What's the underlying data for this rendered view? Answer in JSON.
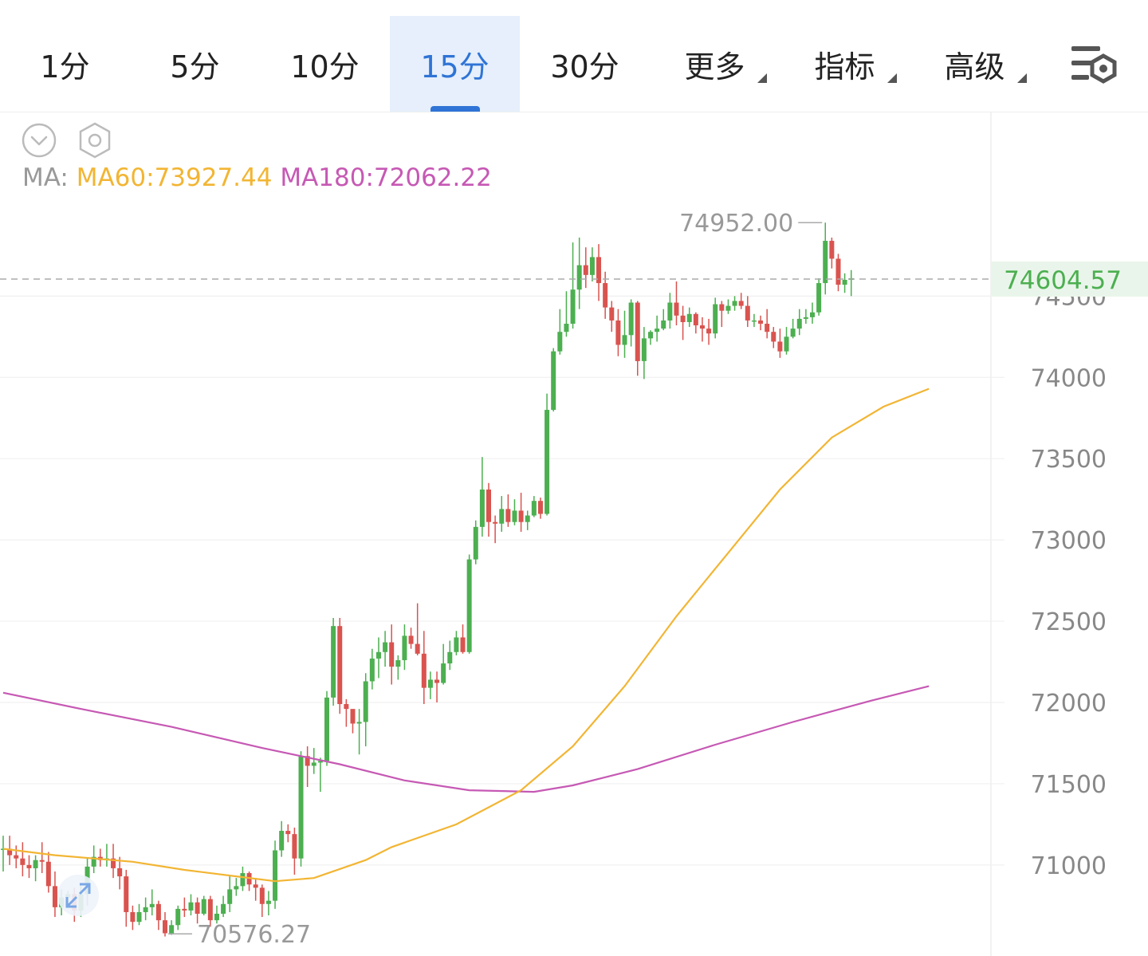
{
  "tabs": [
    {
      "label": "1分",
      "active": false
    },
    {
      "label": "5分",
      "active": false
    },
    {
      "label": "10分",
      "active": false
    },
    {
      "label": "15分",
      "active": true
    },
    {
      "label": "30分",
      "active": false
    },
    {
      "label": "更多",
      "active": false,
      "dropdown": true
    },
    {
      "label": "指标",
      "active": false,
      "dropdown": true
    },
    {
      "label": "高级",
      "active": false,
      "dropdown": true
    }
  ],
  "icons": {
    "collapse": "chevron-down-circle-icon",
    "settings": "hexagon-settings-icon",
    "chart_settings": "list-gear-icon",
    "expand": "expand-arrows-icon"
  },
  "legend": {
    "label": "MA:",
    "ma60": "MA60:73927.44",
    "ma180": "MA180:72062.22"
  },
  "colors": {
    "up": "#4caf50",
    "down": "#d9534f",
    "ma60": "#f2b533",
    "ma180": "#c659b4",
    "active_tab": "#2f74d6",
    "last_price": "#4caf50"
  },
  "chart_data": {
    "type": "candlestick",
    "interval": "15分",
    "y_ticks": [
      71000,
      71500,
      72000,
      72500,
      73000,
      73500,
      74000,
      74500
    ],
    "y_tick_labels": [
      "71000",
      "71500",
      "72000",
      "72500",
      "73000",
      "73500",
      "74000",
      "74500"
    ],
    "ylim": [
      70440,
      75630
    ],
    "last_price": 74604.57,
    "last_price_label": "74604.57",
    "high_label": "74952.00",
    "high_value": 74952.0,
    "low_label": "70576.27",
    "low_value": 70576.27,
    "candles": [
      [
        71100,
        71100,
        70960,
        71180
      ],
      [
        71100,
        71060,
        71000,
        71180
      ],
      [
        71060,
        71040,
        70980,
        71120
      ],
      [
        71040,
        71000,
        70930,
        71140
      ],
      [
        71000,
        70980,
        70920,
        71060
      ],
      [
        70980,
        71030,
        70900,
        71060
      ],
      [
        71030,
        71020,
        70950,
        71140
      ],
      [
        71020,
        70870,
        70830,
        71080
      ],
      [
        70870,
        70740,
        70680,
        70960
      ],
      [
        70740,
        70800,
        70690,
        70850
      ],
      [
        70800,
        70820,
        70750,
        70840
      ],
      [
        70820,
        70720,
        70650,
        70860
      ],
      [
        70720,
        70820,
        70680,
        70880
      ],
      [
        70820,
        70990,
        70750,
        71040
      ],
      [
        70990,
        71050,
        70950,
        71120
      ],
      [
        71050,
        71030,
        70990,
        71100
      ],
      [
        71030,
        71040,
        70990,
        71130
      ],
      [
        71040,
        70980,
        70920,
        71130
      ],
      [
        70980,
        70930,
        70850,
        71050
      ],
      [
        70930,
        70710,
        70620,
        70970
      ],
      [
        70710,
        70650,
        70600,
        70750
      ],
      [
        70650,
        70710,
        70630,
        70760
      ],
      [
        70710,
        70740,
        70660,
        70800
      ],
      [
        70740,
        70760,
        70690,
        70850
      ],
      [
        70760,
        70660,
        70600,
        70780
      ],
      [
        70660,
        70580,
        70560,
        70710
      ],
      [
        70580,
        70630,
        70570,
        70660
      ],
      [
        70630,
        70730,
        70600,
        70750
      ],
      [
        70730,
        70720,
        70680,
        70800
      ],
      [
        70720,
        70770,
        70690,
        70820
      ],
      [
        70770,
        70700,
        70640,
        70800
      ],
      [
        70700,
        70790,
        70690,
        70810
      ],
      [
        70790,
        70660,
        70620,
        70810
      ],
      [
        70660,
        70700,
        70640,
        70750
      ],
      [
        70700,
        70760,
        70680,
        70810
      ],
      [
        70760,
        70850,
        70710,
        70930
      ],
      [
        70850,
        70870,
        70810,
        70920
      ],
      [
        70870,
        70950,
        70840,
        70990
      ],
      [
        70950,
        70880,
        70840,
        70960
      ],
      [
        70880,
        70860,
        70780,
        70920
      ],
      [
        70860,
        70760,
        70680,
        70880
      ],
      [
        70760,
        70780,
        70690,
        70840
      ],
      [
        70780,
        71090,
        70730,
        71150
      ],
      [
        71090,
        71210,
        71050,
        71270
      ],
      [
        71210,
        71190,
        71140,
        71250
      ],
      [
        71190,
        71040,
        70940,
        71230
      ],
      [
        71040,
        71670,
        70990,
        71700
      ],
      [
        71670,
        71610,
        71480,
        71730
      ],
      [
        71610,
        71630,
        71560,
        71720
      ],
      [
        71630,
        71640,
        71450,
        71660
      ],
      [
        71640,
        72030,
        71610,
        72070
      ],
      [
        72030,
        72470,
        71980,
        72520
      ],
      [
        72470,
        71990,
        71930,
        72520
      ],
      [
        71990,
        71960,
        71850,
        72020
      ],
      [
        71960,
        71870,
        71810,
        71930
      ],
      [
        71870,
        71880,
        71680,
        71960
      ],
      [
        71880,
        72130,
        71730,
        72180
      ],
      [
        72130,
        72270,
        72080,
        72330
      ],
      [
        72270,
        72310,
        72150,
        72400
      ],
      [
        72310,
        72370,
        72220,
        72440
      ],
      [
        72370,
        72220,
        72110,
        72480
      ],
      [
        72220,
        72260,
        72140,
        72290
      ],
      [
        72260,
        72410,
        72200,
        72480
      ],
      [
        72410,
        72360,
        72330,
        72460
      ],
      [
        72360,
        72300,
        72290,
        72610
      ],
      [
        72300,
        72090,
        71990,
        72440
      ],
      [
        72090,
        72140,
        72020,
        72190
      ],
      [
        72140,
        72120,
        72000,
        72190
      ],
      [
        72120,
        72240,
        72110,
        72360
      ],
      [
        72240,
        72310,
        72200,
        72380
      ],
      [
        72310,
        72400,
        72290,
        72440
      ],
      [
        72400,
        72310,
        72300,
        72480
      ],
      [
        72310,
        72880,
        72300,
        72910
      ],
      [
        72880,
        73080,
        72850,
        73120
      ],
      [
        73080,
        73310,
        73020,
        73510
      ],
      [
        73310,
        73110,
        73020,
        73350
      ],
      [
        73110,
        73100,
        72980,
        73150
      ],
      [
        73100,
        73190,
        73050,
        73270
      ],
      [
        73190,
        73110,
        73080,
        73280
      ],
      [
        73110,
        73180,
        73090,
        73250
      ],
      [
        73180,
        73110,
        73050,
        73290
      ],
      [
        73110,
        73150,
        73060,
        73180
      ],
      [
        73150,
        73240,
        73140,
        73270
      ],
      [
        73240,
        73160,
        73130,
        73260
      ],
      [
        73160,
        73800,
        73150,
        73900
      ],
      [
        73800,
        74160,
        73790,
        74180
      ],
      [
        74160,
        74280,
        74140,
        74420
      ],
      [
        74280,
        74330,
        74250,
        74530
      ],
      [
        74330,
        74540,
        74300,
        74830
      ],
      [
        74540,
        74690,
        74420,
        74860
      ],
      [
        74690,
        74630,
        74550,
        74800
      ],
      [
        74630,
        74740,
        74590,
        74800
      ],
      [
        74740,
        74580,
        74470,
        74820
      ],
      [
        74580,
        74430,
        74360,
        74650
      ],
      [
        74430,
        74350,
        74280,
        74470
      ],
      [
        74350,
        74200,
        74130,
        74420
      ],
      [
        74200,
        74260,
        74120,
        74410
      ],
      [
        74260,
        74460,
        74190,
        74480
      ],
      [
        74460,
        74100,
        74010,
        74470
      ],
      [
        74100,
        74240,
        73990,
        74310
      ],
      [
        74240,
        74280,
        74200,
        74290
      ],
      [
        74280,
        74300,
        74220,
        74380
      ],
      [
        74300,
        74350,
        74290,
        74420
      ],
      [
        74350,
        74460,
        74300,
        74520
      ],
      [
        74460,
        74380,
        74320,
        74590
      ],
      [
        74380,
        74340,
        74230,
        74440
      ],
      [
        74340,
        74390,
        74310,
        74430
      ],
      [
        74390,
        74320,
        74270,
        74400
      ],
      [
        74320,
        74300,
        74220,
        74370
      ],
      [
        74300,
        74270,
        74200,
        74360
      ],
      [
        74270,
        74450,
        74240,
        74490
      ],
      [
        74450,
        74410,
        74310,
        74470
      ],
      [
        74410,
        74440,
        74390,
        74480
      ],
      [
        74440,
        74470,
        74410,
        74500
      ],
      [
        74470,
        74440,
        74420,
        74520
      ],
      [
        74440,
        74350,
        74310,
        74500
      ],
      [
        74350,
        74350,
        74310,
        74390
      ],
      [
        74350,
        74330,
        74290,
        74380
      ],
      [
        74330,
        74280,
        74240,
        74420
      ],
      [
        74280,
        74220,
        74180,
        74310
      ],
      [
        74220,
        74160,
        74120,
        74300
      ],
      [
        74160,
        74250,
        74140,
        74310
      ],
      [
        74250,
        74300,
        74240,
        74360
      ],
      [
        74300,
        74360,
        74260,
        74420
      ],
      [
        74360,
        74370,
        74330,
        74420
      ],
      [
        74370,
        74400,
        74330,
        74460
      ],
      [
        74400,
        74580,
        74380,
        74610
      ],
      [
        74580,
        74840,
        74510,
        74952
      ],
      [
        74840,
        74730,
        74670,
        74860
      ],
      [
        74730,
        74570,
        74530,
        74760
      ],
      [
        74570,
        74600,
        74520,
        74640
      ],
      [
        74600,
        74610,
        74500,
        74660
      ]
    ],
    "ma60": [
      [
        0,
        71100
      ],
      [
        8,
        71060
      ],
      [
        20,
        71020
      ],
      [
        28,
        70970
      ],
      [
        36,
        70930
      ],
      [
        42,
        70900
      ],
      [
        48,
        70920
      ],
      [
        56,
        71030
      ],
      [
        60,
        71110
      ],
      [
        70,
        71250
      ],
      [
        80,
        71460
      ],
      [
        88,
        71730
      ],
      [
        96,
        72100
      ],
      [
        104,
        72530
      ],
      [
        112,
        72920
      ],
      [
        120,
        73310
      ],
      [
        128,
        73630
      ],
      [
        136,
        73820
      ],
      [
        143,
        73930
      ]
    ],
    "ma180": [
      [
        0,
        72060
      ],
      [
        12,
        71960
      ],
      [
        26,
        71850
      ],
      [
        40,
        71720
      ],
      [
        52,
        71620
      ],
      [
        62,
        71520
      ],
      [
        72,
        71460
      ],
      [
        82,
        71450
      ],
      [
        88,
        71490
      ],
      [
        98,
        71590
      ],
      [
        110,
        71740
      ],
      [
        122,
        71880
      ],
      [
        134,
        72010
      ],
      [
        143,
        72100
      ]
    ]
  }
}
